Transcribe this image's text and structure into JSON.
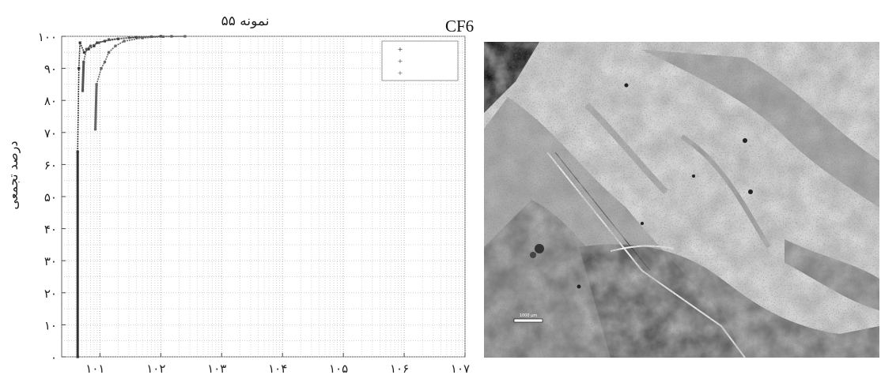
{
  "chart_data": {
    "type": "scatter",
    "title": "نمونه ۵۵",
    "xlabel": "",
    "ylabel": "درصد تجمعی",
    "x_scale": "log",
    "x_ticks": [
      {
        "value": 10,
        "label": "۱۰۱"
      },
      {
        "value": 100,
        "label": "۱۰۲"
      },
      {
        "value": 1000,
        "label": "۱۰۳"
      },
      {
        "value": 10000,
        "label": "۱۰۴"
      },
      {
        "value": 100000,
        "label": "۱۰۵"
      },
      {
        "value": 1000000,
        "label": "۱۰۶"
      },
      {
        "value": 10000000,
        "label": "۱۰۷"
      }
    ],
    "y_ticks": [
      {
        "value": 0,
        "label": "۰"
      },
      {
        "value": 10,
        "label": "۱۰"
      },
      {
        "value": 20,
        "label": "۲۰"
      },
      {
        "value": 30,
        "label": "۳۰"
      },
      {
        "value": 40,
        "label": "۴۰"
      },
      {
        "value": 50,
        "label": "۵۰"
      },
      {
        "value": 60,
        "label": "۶۰"
      },
      {
        "value": 70,
        "label": "۷۰"
      },
      {
        "value": 80,
        "label": "۸۰"
      },
      {
        "value": 90,
        "label": "۹۰"
      },
      {
        "value": 100,
        "label": "۱۰۰"
      }
    ],
    "ylim": [
      0,
      100
    ],
    "grid": true,
    "legend_position": "top-right",
    "series": [
      {
        "color": "#333333",
        "points": [
          [
            4.3,
            0
          ],
          [
            4.3,
            64
          ],
          [
            4.5,
            90
          ],
          [
            4.7,
            98
          ],
          [
            5.5,
            95
          ],
          [
            6.5,
            96
          ],
          [
            8,
            97
          ],
          [
            9,
            98
          ],
          [
            12,
            98.5
          ],
          [
            20,
            99.2
          ],
          [
            40,
            99.7
          ],
          [
            100,
            100
          ]
        ]
      },
      {
        "color": "#555555",
        "points": [
          [
            5.2,
            83
          ],
          [
            5.4,
            92
          ],
          [
            6,
            96
          ],
          [
            7,
            97
          ],
          [
            9.5,
            98
          ],
          [
            14,
            99
          ],
          [
            30,
            99.6
          ],
          [
            70,
            99.9
          ],
          [
            150,
            100
          ]
        ]
      },
      {
        "color": "#666666",
        "points": [
          [
            8.4,
            71
          ],
          [
            8.8,
            85
          ],
          [
            10.5,
            90
          ],
          [
            12,
            92
          ],
          [
            14,
            95
          ],
          [
            18,
            97
          ],
          [
            25,
            98.5
          ],
          [
            50,
            99.5
          ],
          [
            110,
            99.9
          ],
          [
            250,
            100
          ]
        ]
      }
    ]
  },
  "photo": {
    "label": "CF6",
    "scale_bar_label": "1000 µm"
  }
}
